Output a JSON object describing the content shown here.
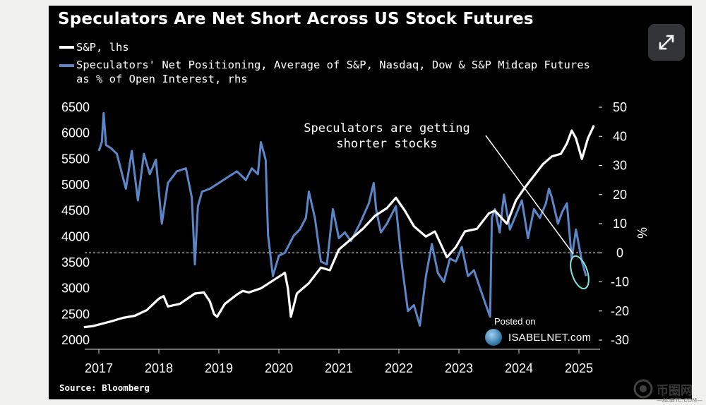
{
  "title": "Speculators Are Net Short Across US Stock Futures",
  "legend": {
    "sp_label": "S&P, lhs",
    "net_label_line1": "Speculators' Net Positioning, Average of S&P, Nasdaq, Dow & S&P Midcap Futures",
    "net_label_line2": "as % of Open Interest, rhs"
  },
  "colors": {
    "sp": "#ffffff",
    "net": "#5b86c8",
    "highlight": "#7fe7da",
    "background": "#000000"
  },
  "annotation": {
    "line1": "Speculators are getting",
    "line2": "shorter stocks"
  },
  "source": "Source: Bloomberg",
  "watermark": {
    "posted": "Posted on",
    "brand": "ISABELNET.com",
    "site": "币圈网",
    "site_url": "—ALIBTC.COM—"
  },
  "expand_button": {
    "icon": "expand-arrows-icon"
  },
  "chart_data": {
    "type": "line",
    "title": "Speculators Are Net Short Across US Stock Futures",
    "x_ticks": [
      "2017",
      "2018",
      "2019",
      "2020",
      "2021",
      "2022",
      "2023",
      "2024",
      "2025"
    ],
    "x_range": [
      2016.7,
      2025.5
    ],
    "y_left": {
      "label": "S&P, lhs",
      "range": [
        2000,
        6500
      ],
      "ticks": [
        "6500",
        "6000",
        "5500",
        "5000",
        "4500",
        "4000",
        "3500",
        "3000",
        "2500",
        "2000"
      ]
    },
    "y_right": {
      "label": "%",
      "range": [
        -30,
        50
      ],
      "ticks": [
        "50",
        "40",
        "30",
        "20",
        "10",
        "0",
        "-10",
        "-20",
        "-30"
      ]
    },
    "zero_line": "dashed at 0 (rhs)",
    "grid": false,
    "legend_position": "top-left",
    "series": [
      {
        "name": "S&P, lhs",
        "axis": "left",
        "x": [
          2016.75,
          2016.9,
          2017.0,
          2017.2,
          2017.4,
          2017.6,
          2017.8,
          2018.0,
          2018.08,
          2018.15,
          2018.35,
          2018.6,
          2018.75,
          2018.85,
          2018.92,
          2018.97,
          2019.1,
          2019.3,
          2019.4,
          2019.5,
          2019.7,
          2019.9,
          2020.1,
          2020.15,
          2020.2,
          2020.3,
          2020.5,
          2020.7,
          2020.85,
          2021.0,
          2021.2,
          2021.4,
          2021.6,
          2021.8,
          2021.95,
          2022.1,
          2022.25,
          2022.45,
          2022.6,
          2022.8,
          2022.95,
          2023.1,
          2023.3,
          2023.5,
          2023.6,
          2023.8,
          2023.95,
          2024.1,
          2024.3,
          2024.4,
          2024.55,
          2024.7,
          2024.8,
          2024.88,
          2024.95,
          2025.05,
          2025.15,
          2025.25
        ],
        "y": [
          2250,
          2270,
          2300,
          2360,
          2430,
          2470,
          2580,
          2800,
          2850,
          2650,
          2700,
          2900,
          2920,
          2750,
          2500,
          2450,
          2700,
          2880,
          2950,
          2920,
          3000,
          3150,
          3300,
          3000,
          2450,
          2900,
          3100,
          3400,
          3350,
          3750,
          3950,
          4150,
          4400,
          4550,
          4750,
          4500,
          4200,
          4000,
          4100,
          3600,
          3800,
          4100,
          4150,
          4450,
          4500,
          4250,
          4700,
          4950,
          5250,
          5400,
          5550,
          5600,
          5800,
          6050,
          5900,
          5500,
          5900,
          6150
        ]
      },
      {
        "name": "Speculators' Net Positioning, Average of S&P, Nasdaq, Dow & S&P Midcap Futures as % of Open Interest, rhs",
        "axis": "right",
        "x": [
          2017.0,
          2017.05,
          2017.08,
          2017.12,
          2017.2,
          2017.3,
          2017.45,
          2017.55,
          2017.65,
          2017.75,
          2017.85,
          2017.95,
          2018.05,
          2018.15,
          2018.3,
          2018.45,
          2018.55,
          2018.6,
          2018.65,
          2018.72,
          2018.85,
          2019.0,
          2019.15,
          2019.3,
          2019.45,
          2019.55,
          2019.65,
          2019.7,
          2019.78,
          2019.82,
          2019.9,
          2020.0,
          2020.1,
          2020.25,
          2020.35,
          2020.45,
          2020.5,
          2020.6,
          2020.7,
          2020.8,
          2020.9,
          2021.0,
          2021.1,
          2021.2,
          2021.35,
          2021.5,
          2021.58,
          2021.62,
          2021.7,
          2021.8,
          2021.95,
          2022.05,
          2022.15,
          2022.25,
          2022.35,
          2022.45,
          2022.55,
          2022.65,
          2022.75,
          2022.85,
          2022.95,
          2023.05,
          2023.15,
          2023.25,
          2023.35,
          2023.45,
          2023.52,
          2023.55,
          2023.6,
          2023.68,
          2023.75,
          2023.85,
          2023.95,
          2024.05,
          2024.15,
          2024.25,
          2024.35,
          2024.45,
          2024.5,
          2024.55,
          2024.65,
          2024.72,
          2024.8,
          2024.88,
          2024.95,
          2025.05,
          2025.12
        ],
        "y": [
          35,
          38,
          48,
          37,
          36,
          34,
          22,
          35,
          18,
          34,
          27,
          32,
          10,
          24,
          28,
          29,
          19,
          -4,
          16,
          21,
          22,
          24,
          26,
          28,
          25,
          29,
          27,
          38,
          32,
          6,
          -8,
          -1,
          0,
          6,
          8,
          12,
          21,
          12,
          -3,
          -4,
          15,
          5,
          7,
          4,
          10,
          17,
          24,
          15,
          7,
          10,
          16,
          -4,
          -20,
          -18,
          -25,
          -8,
          3,
          -7,
          -10,
          -2,
          -3,
          2,
          -8,
          -6,
          -12,
          -18,
          -22,
          12,
          15,
          7,
          20,
          8,
          13,
          18,
          5,
          15,
          12,
          17,
          22,
          19,
          10,
          14,
          17,
          -2,
          8,
          -3,
          -8
        ]
      }
    ]
  }
}
